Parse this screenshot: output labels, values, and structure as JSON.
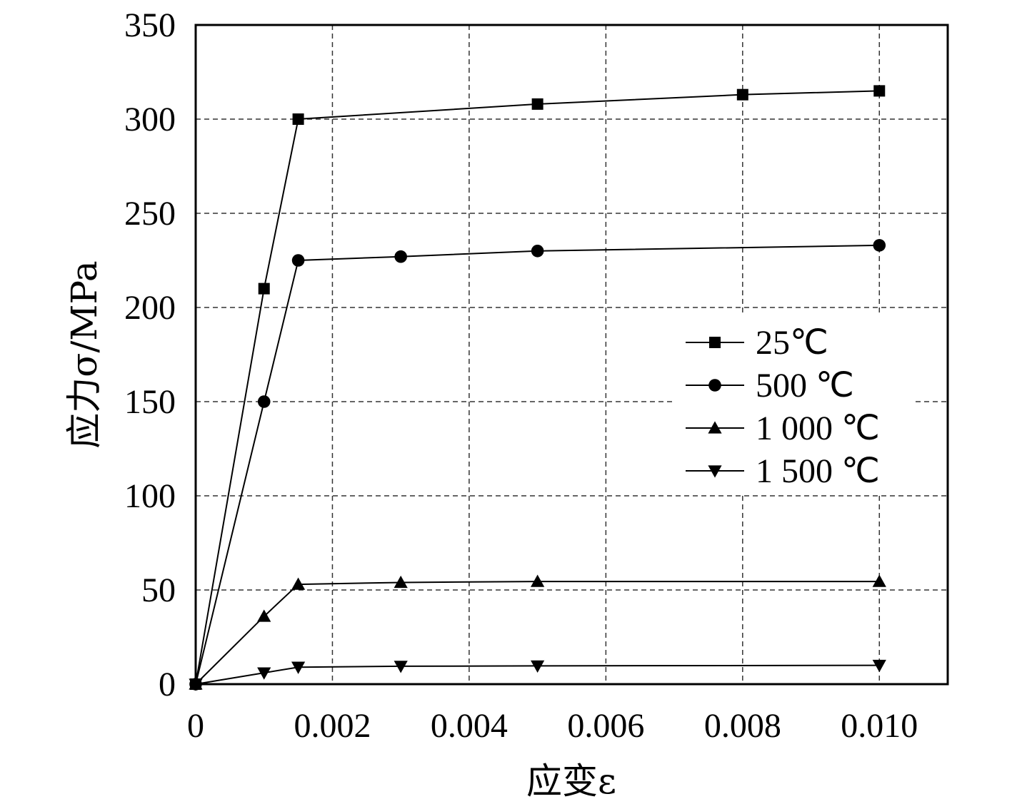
{
  "chart_data": {
    "type": "line",
    "xlabel": "应变ε",
    "ylabel": "应力σ/MPa",
    "xlim": [
      0,
      0.011
    ],
    "ylim": [
      0,
      350
    ],
    "xticks": [
      "0",
      "0.002",
      "0.004",
      "0.006",
      "0.008",
      "0.010"
    ],
    "xtick_values": [
      0,
      0.002,
      0.004,
      0.006,
      0.008,
      0.01
    ],
    "yticks": [
      "0",
      "50",
      "100",
      "150",
      "200",
      "250",
      "300",
      "350"
    ],
    "ytick_values": [
      0,
      50,
      100,
      150,
      200,
      250,
      300,
      350
    ],
    "grid": true,
    "grid_style": "dashed",
    "legend_position": "right-middle",
    "series": [
      {
        "name": "25℃",
        "marker": "square",
        "x": [
          0,
          0.001,
          0.0015,
          0.005,
          0.008,
          0.01
        ],
        "y": [
          0,
          210,
          300,
          308,
          313,
          315
        ]
      },
      {
        "name": "500 ℃",
        "marker": "circle",
        "x": [
          0,
          0.001,
          0.0015,
          0.003,
          0.005,
          0.01
        ],
        "y": [
          0,
          150,
          225,
          227,
          230,
          233
        ]
      },
      {
        "name": "1 000 ℃",
        "marker": "triangle-up",
        "x": [
          0,
          0.001,
          0.0015,
          0.003,
          0.005,
          0.01
        ],
        "y": [
          0,
          36,
          53,
          54,
          54.5,
          54.5
        ]
      },
      {
        "name": "1 500 ℃",
        "marker": "triangle-down",
        "x": [
          0,
          0.001,
          0.0015,
          0.003,
          0.005,
          0.01
        ],
        "y": [
          0,
          6,
          9,
          9.5,
          9.7,
          10
        ]
      }
    ]
  }
}
